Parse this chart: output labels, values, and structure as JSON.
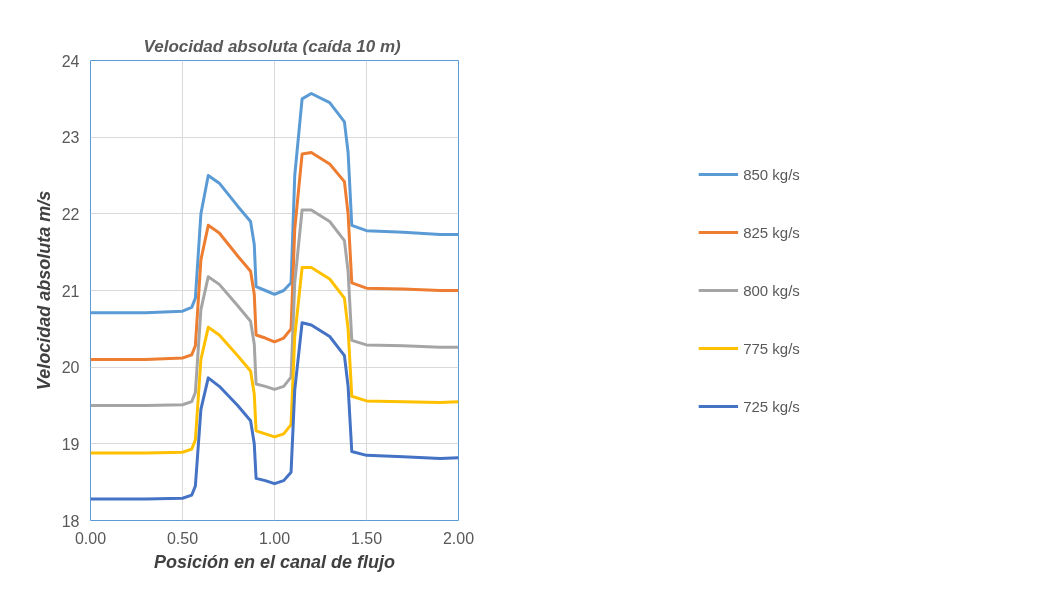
{
  "chart_data": {
    "type": "line",
    "title": "Velocidad absoluta  (caída 10 m)",
    "xlabel": "Posición en el canal de flujo",
    "ylabel": "Velocidad absoluta m/s",
    "x": [
      0,
      0.3,
      0.5,
      0.55,
      0.57,
      0.6,
      0.64,
      0.7,
      0.8,
      0.87,
      0.89,
      0.9,
      0.95,
      1.0,
      1.05,
      1.09,
      1.11,
      1.15,
      1.2,
      1.3,
      1.38,
      1.4,
      1.42,
      1.5,
      1.7,
      1.9,
      2.0
    ],
    "series": [
      {
        "name": "850 kg/s",
        "color": "#5b9bd5",
        "values": [
          20.71,
          20.71,
          20.73,
          20.78,
          20.9,
          22.0,
          22.5,
          22.4,
          22.1,
          21.9,
          21.6,
          21.05,
          21.0,
          20.95,
          21.0,
          21.1,
          22.5,
          23.5,
          23.57,
          23.45,
          23.2,
          22.8,
          21.85,
          21.78,
          21.76,
          21.73,
          21.73
        ]
      },
      {
        "name": "825 kg/s",
        "color": "#ed7d31",
        "values": [
          20.1,
          20.1,
          20.12,
          20.16,
          20.28,
          21.4,
          21.85,
          21.75,
          21.45,
          21.25,
          20.95,
          20.42,
          20.38,
          20.33,
          20.38,
          20.5,
          21.8,
          22.78,
          22.8,
          22.65,
          22.42,
          22.0,
          21.1,
          21.03,
          21.02,
          21.0,
          21.0
        ]
      },
      {
        "name": "800 kg/s",
        "color": "#a5a5a5",
        "values": [
          19.5,
          19.5,
          19.51,
          19.55,
          19.67,
          20.75,
          21.18,
          21.08,
          20.8,
          20.6,
          20.3,
          19.78,
          19.75,
          19.71,
          19.75,
          19.87,
          21.1,
          22.05,
          22.05,
          21.9,
          21.65,
          21.25,
          20.35,
          20.29,
          20.28,
          20.26,
          20.26
        ]
      },
      {
        "name": "775 kg/s",
        "color": "#ffc000",
        "values": [
          18.88,
          18.88,
          18.89,
          18.93,
          19.05,
          20.1,
          20.52,
          20.42,
          20.15,
          19.95,
          19.65,
          19.17,
          19.13,
          19.09,
          19.13,
          19.25,
          20.4,
          21.3,
          21.3,
          21.15,
          20.9,
          20.5,
          19.62,
          19.56,
          19.55,
          19.54,
          19.55
        ]
      },
      {
        "name": "725 kg/s",
        "color": "#4472c4",
        "values": [
          18.28,
          18.28,
          18.29,
          18.33,
          18.45,
          19.45,
          19.86,
          19.75,
          19.5,
          19.3,
          19.0,
          18.55,
          18.52,
          18.48,
          18.52,
          18.63,
          19.7,
          20.58,
          20.55,
          20.4,
          20.15,
          19.75,
          18.9,
          18.85,
          18.83,
          18.81,
          18.82
        ]
      }
    ],
    "xlim": [
      0,
      2
    ],
    "xticks": [
      {
        "value": 0,
        "label": "0.00"
      },
      {
        "value": 0.5,
        "label": "0.50"
      },
      {
        "value": 1,
        "label": "1.00"
      },
      {
        "value": 1.5,
        "label": "1.50"
      },
      {
        "value": 2,
        "label": "2.00"
      }
    ],
    "ylim": [
      18,
      24
    ],
    "yticks": [
      18,
      19,
      20,
      21,
      22,
      23,
      24
    ],
    "grid": true,
    "legend": "right",
    "marker": "none",
    "line_style": "solid"
  }
}
